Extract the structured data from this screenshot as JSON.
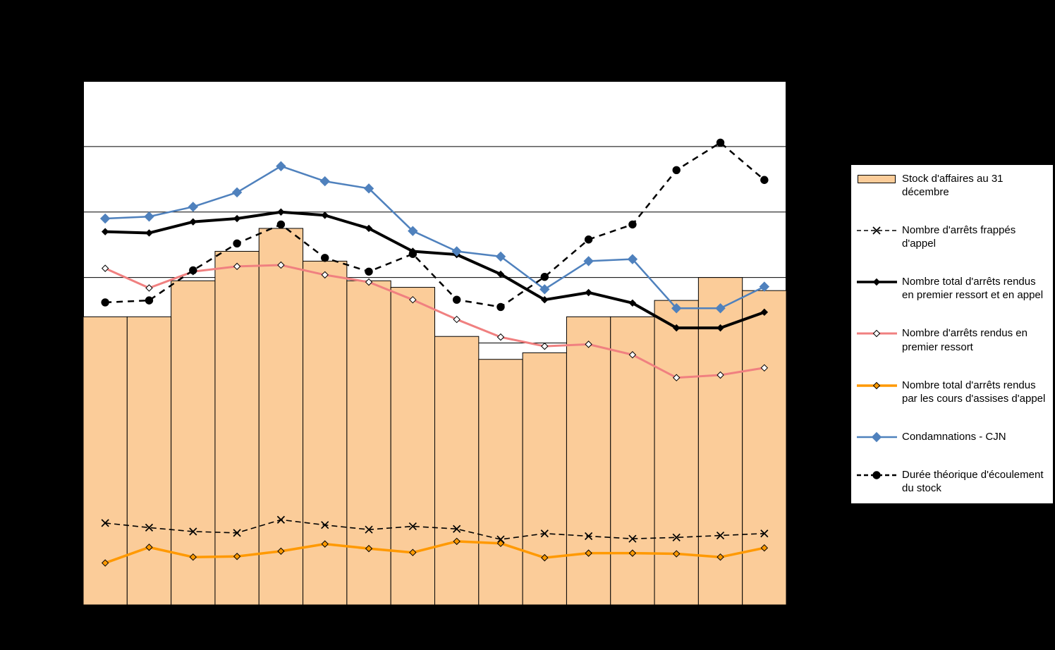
{
  "page": {
    "background_color": "#000000",
    "title_visible": false
  },
  "chart_data": {
    "type": "combo-bar-line",
    "x_count": 16,
    "x_labels_visible": false,
    "y_axis": {
      "min": 0,
      "max": 800,
      "gridline_step": 100,
      "labels_visible": false,
      "gridline_color": "#000000"
    },
    "plot": {
      "background": "#ffffff",
      "border_color": "#000000"
    },
    "legend_position": "right",
    "bar_series": {
      "name": "Stock d'affaires au 31 décembre",
      "color": "#FBCC99",
      "border_color": "#000000",
      "values": [
        440,
        440,
        495,
        540,
        575,
        525,
        495,
        485,
        410,
        375,
        385,
        440,
        440,
        465,
        500,
        480
      ]
    },
    "line_series": [
      {
        "name": "Nombre d'arrêts frappés d'appel",
        "color": "#000000",
        "style": "dashed",
        "dash": "8 5",
        "width": 1.6,
        "marker": "x",
        "marker_stroke": "#000000",
        "marker_fill": "none",
        "marker_size": 5,
        "values": [
          125,
          118,
          112,
          110,
          130,
          122,
          115,
          120,
          116,
          100,
          109,
          105,
          101,
          103,
          106,
          109
        ]
      },
      {
        "name": "Nombre total d'arrêts rendus en premier ressort et en appel",
        "color": "#000000",
        "style": "solid",
        "dash": "",
        "width": 4,
        "marker": "diamond",
        "marker_stroke": "#000000",
        "marker_fill": "#000000",
        "marker_size": 4.5,
        "values": [
          570,
          568,
          585,
          590,
          600,
          595,
          575,
          540,
          535,
          505,
          466,
          477,
          461,
          423,
          423,
          447
        ]
      },
      {
        "name": "Nombre d'arrêts rendus en premier ressort",
        "color": "#F08080",
        "style": "solid",
        "dash": "",
        "width": 3,
        "marker": "diamond",
        "marker_stroke": "#000000",
        "marker_fill": "#ffffff",
        "marker_size": 4.5,
        "values": [
          514,
          484,
          509,
          517,
          519,
          504,
          493,
          466,
          436,
          409,
          395,
          398,
          382,
          347,
          351,
          362
        ]
      },
      {
        "name": "Nombre total d'arrêts rendus par les cours d'assises d'appel",
        "color": "#FF9900",
        "style": "solid",
        "dash": "",
        "width": 3.5,
        "marker": "diamond",
        "marker_stroke": "#000000",
        "marker_fill": "#FF9900",
        "marker_size": 4.5,
        "values": [
          64,
          88,
          73,
          74,
          82,
          93,
          86,
          80,
          97,
          94,
          72,
          79,
          79,
          78,
          73,
          87
        ]
      },
      {
        "name": "Condamnations - CJN",
        "color": "#4F81BD",
        "style": "solid",
        "dash": "",
        "width": 2.5,
        "marker": "diamond",
        "marker_stroke": "#4F81BD",
        "marker_fill": "#4F81BD",
        "marker_size": 6.5,
        "values": [
          590,
          593,
          608,
          630,
          670,
          647,
          636,
          571,
          540,
          532,
          482,
          525,
          528,
          453,
          453,
          486
        ]
      },
      {
        "name": "Durée théorique d'écoulement du stock",
        "color": "#000000",
        "style": "dashed",
        "dash": "9 7",
        "width": 2.5,
        "marker": "circle",
        "marker_stroke": "#000000",
        "marker_fill": "#000000",
        "marker_size": 5.2,
        "values": [
          462,
          465,
          511,
          552,
          581,
          530,
          509,
          536,
          466,
          455,
          501,
          558,
          581,
          664,
          706,
          649
        ]
      }
    ]
  }
}
